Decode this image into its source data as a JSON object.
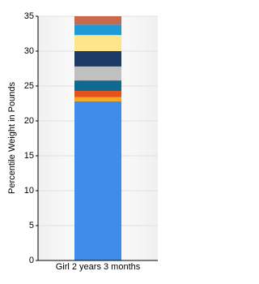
{
  "chart_data": {
    "type": "stacked_bar",
    "y_label": "Percentile Weight in Pounds",
    "categories": [
      "Girl 2 years 3 months"
    ],
    "series": [
      {
        "color": "#3f8ceb",
        "values": [
          22.8
        ]
      },
      {
        "color": "#f5a623",
        "values": [
          0.6
        ]
      },
      {
        "color": "#e6521c",
        "values": [
          0.9
        ]
      },
      {
        "color": "#0e6a8e",
        "values": [
          1.5
        ]
      },
      {
        "color": "#c0c0c0",
        "values": [
          2.0
        ]
      },
      {
        "color": "#1e3a66",
        "values": [
          2.2
        ]
      },
      {
        "color": "#fde68a",
        "values": [
          2.3
        ]
      },
      {
        "color": "#1e9ad6",
        "values": [
          1.5
        ]
      },
      {
        "color": "#c8694e",
        "values": [
          1.2
        ]
      }
    ],
    "ylim": [
      0,
      35
    ],
    "yticks": [
      0,
      5,
      10,
      15,
      20,
      25,
      30,
      35
    ],
    "grid": true
  }
}
